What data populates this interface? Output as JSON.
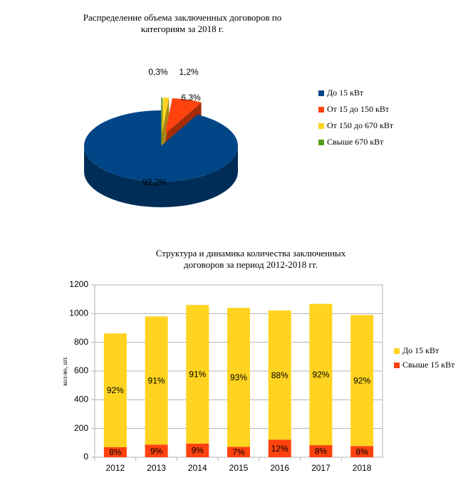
{
  "chart_data": [
    {
      "type": "pie",
      "title": [
        "Распределение объема заключенных договоров по",
        "категориям за 2018 г."
      ],
      "categories": [
        "До 15 кВт",
        "От 15 до 150 кВт",
        "От 150 до 670 кВт",
        "Свыше 670 кВт"
      ],
      "values": [
        92.2,
        6.3,
        1.2,
        0.3
      ],
      "value_labels": [
        "92,2%",
        "6,3%",
        "1,2%",
        "0,3%"
      ],
      "colors": [
        "#004586",
        "#ff420e",
        "#ffd320",
        "#579d1c"
      ],
      "legend": "right"
    },
    {
      "type": "bar",
      "stacked": true,
      "title": [
        "Структура и динамика количества заключенных",
        "договоров за период 2012-2018 гг."
      ],
      "y_label": "кол-во, шт.",
      "categories": [
        "2012",
        "2013",
        "2014",
        "2015",
        "2016",
        "2017",
        "2018"
      ],
      "series": [
        {
          "name": "До 15 кВт",
          "color": "#ffd320",
          "values": [
            792,
            892,
            965,
            968,
            900,
            984,
            912
          ],
          "shares": [
            92,
            91,
            91,
            93,
            88,
            92,
            92
          ],
          "share_labels": [
            "92%",
            "91%",
            "91%",
            "93%",
            "88%",
            "92%",
            "92%"
          ]
        },
        {
          "name": "Свыше 15 кВт",
          "color": "#ff420e",
          "values": [
            70,
            88,
            95,
            72,
            122,
            84,
            78
          ],
          "shares": [
            8,
            9,
            9,
            7,
            12,
            8,
            8
          ],
          "share_labels": [
            "8%",
            "9%",
            "9%",
            "7%",
            "12%",
            "8%",
            "8%"
          ]
        }
      ],
      "ylim": [
        0,
        1200
      ],
      "yticks": [
        0,
        200,
        400,
        600,
        800,
        1000,
        1200
      ],
      "grid": true,
      "legend": "right"
    }
  ]
}
